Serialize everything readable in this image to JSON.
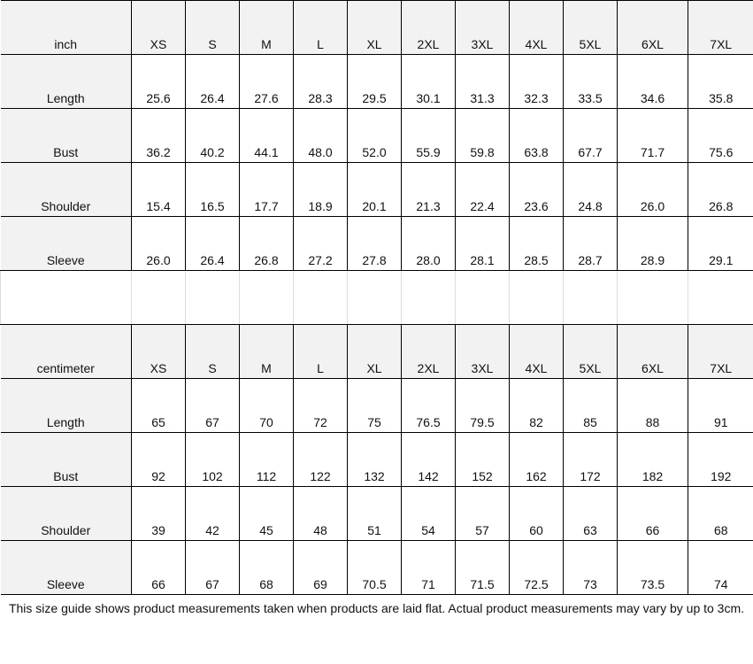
{
  "sizes": [
    "XS",
    "S",
    "M",
    "L",
    "XL",
    "2XL",
    "3XL",
    "4XL",
    "5XL",
    "6XL",
    "7XL"
  ],
  "inch": {
    "unit": "inch",
    "rows": [
      {
        "label": "Length",
        "values": [
          "25.6",
          "26.4",
          "27.6",
          "28.3",
          "29.5",
          "30.1",
          "31.3",
          "32.3",
          "33.5",
          "34.6",
          "35.8"
        ]
      },
      {
        "label": "Bust",
        "values": [
          "36.2",
          "40.2",
          "44.1",
          "48.0",
          "52.0",
          "55.9",
          "59.8",
          "63.8",
          "67.7",
          "71.7",
          "75.6"
        ]
      },
      {
        "label": "Shoulder",
        "values": [
          "15.4",
          "16.5",
          "17.7",
          "18.9",
          "20.1",
          "21.3",
          "22.4",
          "23.6",
          "24.8",
          "26.0",
          "26.8"
        ]
      },
      {
        "label": "Sleeve",
        "values": [
          "26.0",
          "26.4",
          "26.8",
          "27.2",
          "27.8",
          "28.0",
          "28.1",
          "28.5",
          "28.7",
          "28.9",
          "29.1"
        ]
      }
    ]
  },
  "centimeter": {
    "unit": "centimeter",
    "rows": [
      {
        "label": "Length",
        "values": [
          "65",
          "67",
          "70",
          "72",
          "75",
          "76.5",
          "79.5",
          "82",
          "85",
          "88",
          "91"
        ]
      },
      {
        "label": "Bust",
        "values": [
          "92",
          "102",
          "112",
          "122",
          "132",
          "142",
          "152",
          "162",
          "172",
          "182",
          "192"
        ]
      },
      {
        "label": "Shoulder",
        "values": [
          "39",
          "42",
          "45",
          "48",
          "51",
          "54",
          "57",
          "60",
          "63",
          "66",
          "68"
        ]
      },
      {
        "label": "Sleeve",
        "values": [
          "66",
          "67",
          "68",
          "69",
          "70.5",
          "71",
          "71.5",
          "72.5",
          "73",
          "73.5",
          "74"
        ]
      }
    ]
  },
  "note": "This size guide shows product measurements taken when products are laid flat. Actual product measurements may vary by up to 3cm."
}
